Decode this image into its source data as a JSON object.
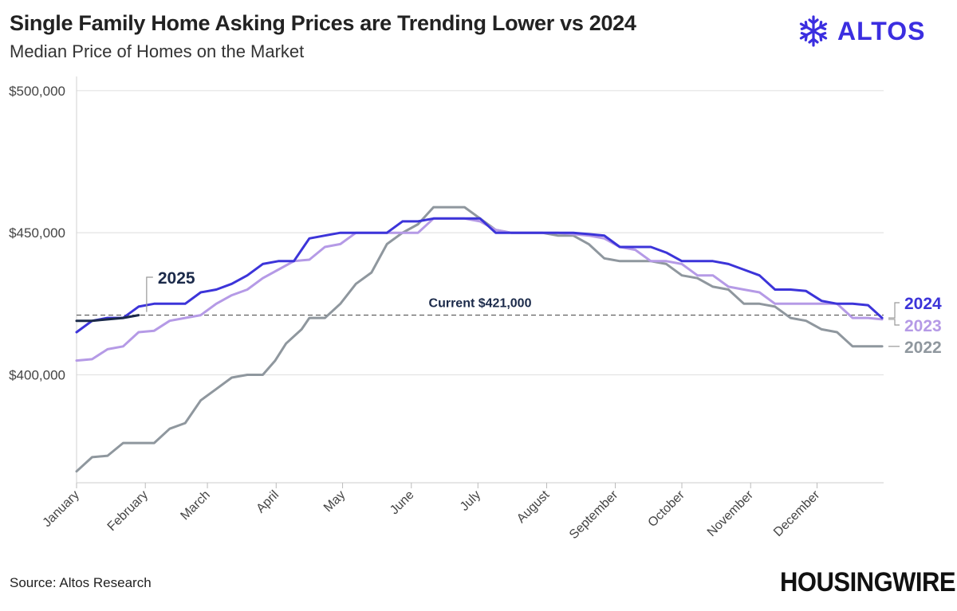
{
  "header": {
    "title": "Single Family Home Asking Prices are Trending Lower vs 2024",
    "subtitle": "Median Price of Homes on the Market"
  },
  "brand": {
    "name": "ALTOS",
    "icon": "snowflake-icon",
    "color": "#3b2ee0"
  },
  "footer": {
    "source": "Source: Altos Research",
    "publisher": "HOUSINGWIRE"
  },
  "annotation": {
    "label": "Current $421,000",
    "value": 421000
  },
  "chart_data": {
    "type": "line",
    "x_unit": "week of year",
    "x_ticks": [
      {
        "label": "January",
        "week": 1
      },
      {
        "label": "February",
        "week": 5.43
      },
      {
        "label": "March",
        "week": 9.43
      },
      {
        "label": "April",
        "week": 13.86
      },
      {
        "label": "May",
        "week": 18.14
      },
      {
        "label": "June",
        "week": 22.57
      },
      {
        "label": "July",
        "week": 26.86
      },
      {
        "label": "August",
        "week": 31.29
      },
      {
        "label": "September",
        "week": 35.71
      },
      {
        "label": "October",
        "week": 40.0
      },
      {
        "label": "November",
        "week": 44.43
      },
      {
        "label": "December",
        "week": 48.71
      }
    ],
    "xlim": [
      1,
      53
    ],
    "ylim": [
      362000,
      505000
    ],
    "y_ticks": [
      {
        "label": "$400,000",
        "value": 400000
      },
      {
        "label": "$450,000",
        "value": 450000
      },
      {
        "label": "$500,000",
        "value": 500000
      }
    ],
    "grid": "horizontal",
    "series": [
      {
        "name": "2022",
        "color": "#8f979e",
        "values": [
          [
            1,
            366000
          ],
          [
            2,
            371000
          ],
          [
            3,
            371500
          ],
          [
            4,
            376000
          ],
          [
            5,
            376000
          ],
          [
            6,
            376000
          ],
          [
            7,
            381000
          ],
          [
            8,
            383000
          ],
          [
            9,
            391000
          ],
          [
            10,
            395000
          ],
          [
            11,
            399000
          ],
          [
            12,
            400000
          ],
          [
            13,
            400000
          ],
          [
            13.8,
            405000
          ],
          [
            14.5,
            411000
          ],
          [
            15.5,
            416000
          ],
          [
            16,
            420000
          ],
          [
            17,
            420000
          ],
          [
            18,
            425000
          ],
          [
            19,
            432000
          ],
          [
            20,
            436000
          ],
          [
            21,
            446000
          ],
          [
            22,
            450000
          ],
          [
            23,
            453000
          ],
          [
            24,
            459000
          ],
          [
            25,
            459000
          ],
          [
            26,
            459000
          ],
          [
            27,
            455000
          ],
          [
            28,
            451000
          ],
          [
            29,
            450000
          ],
          [
            30,
            450000
          ],
          [
            31,
            450000
          ],
          [
            32,
            449000
          ],
          [
            33,
            449000
          ],
          [
            34,
            446000
          ],
          [
            35,
            441000
          ],
          [
            36,
            440000
          ],
          [
            37,
            440000
          ],
          [
            38,
            440000
          ],
          [
            39,
            439000
          ],
          [
            40,
            435000
          ],
          [
            41,
            434000
          ],
          [
            42,
            431000
          ],
          [
            43,
            430000
          ],
          [
            44,
            425000
          ],
          [
            45,
            425000
          ],
          [
            46,
            424000
          ],
          [
            47,
            420000
          ],
          [
            48,
            419000
          ],
          [
            49,
            416000
          ],
          [
            50,
            415000
          ],
          [
            51,
            410000
          ],
          [
            52,
            410000
          ],
          [
            52.9,
            410000
          ]
        ]
      },
      {
        "name": "2023",
        "color": "#b59ae6",
        "values": [
          [
            1,
            405000
          ],
          [
            2,
            405500
          ],
          [
            3,
            409000
          ],
          [
            4,
            410000
          ],
          [
            5,
            415000
          ],
          [
            6,
            415500
          ],
          [
            7,
            419000
          ],
          [
            8,
            420000
          ],
          [
            9,
            421000
          ],
          [
            10,
            425000
          ],
          [
            11,
            428000
          ],
          [
            12,
            430000
          ],
          [
            13,
            434000
          ],
          [
            14,
            437000
          ],
          [
            15,
            440000
          ],
          [
            16,
            440500
          ],
          [
            17,
            445000
          ],
          [
            18,
            446000
          ],
          [
            19,
            450000
          ],
          [
            20,
            450000
          ],
          [
            21,
            450000
          ],
          [
            22,
            450000
          ],
          [
            23,
            450000
          ],
          [
            24,
            455000
          ],
          [
            25,
            455000
          ],
          [
            26,
            455000
          ],
          [
            27,
            454000
          ],
          [
            28,
            451000
          ],
          [
            29,
            450000
          ],
          [
            30,
            450000
          ],
          [
            31,
            450000
          ],
          [
            32,
            450000
          ],
          [
            33,
            449500
          ],
          [
            34,
            449000
          ],
          [
            35,
            448000
          ],
          [
            36,
            445000
          ],
          [
            37,
            444000
          ],
          [
            38,
            440000
          ],
          [
            39,
            440000
          ],
          [
            40,
            439000
          ],
          [
            41,
            435000
          ],
          [
            42,
            435000
          ],
          [
            43,
            431000
          ],
          [
            44,
            430000
          ],
          [
            45,
            429000
          ],
          [
            46,
            425000
          ],
          [
            47,
            425000
          ],
          [
            48,
            425000
          ],
          [
            49,
            425000
          ],
          [
            50,
            425000
          ],
          [
            51,
            420000
          ],
          [
            52,
            420000
          ],
          [
            52.9,
            419500
          ]
        ]
      },
      {
        "name": "2024",
        "color": "#3c34d9",
        "values": [
          [
            1,
            415000
          ],
          [
            2,
            419000
          ],
          [
            3,
            420000
          ],
          [
            4,
            420000
          ],
          [
            5,
            424000
          ],
          [
            6,
            425000
          ],
          [
            7,
            425000
          ],
          [
            8,
            425000
          ],
          [
            9,
            429000
          ],
          [
            10,
            430000
          ],
          [
            11,
            432000
          ],
          [
            12,
            435000
          ],
          [
            13,
            439000
          ],
          [
            14,
            440000
          ],
          [
            15,
            440000
          ],
          [
            16,
            448000
          ],
          [
            17,
            449000
          ],
          [
            18,
            450000
          ],
          [
            19,
            450000
          ],
          [
            20,
            450000
          ],
          [
            21,
            450000
          ],
          [
            22,
            454000
          ],
          [
            23,
            454000
          ],
          [
            24,
            455000
          ],
          [
            25,
            455000
          ],
          [
            26,
            455000
          ],
          [
            27,
            455000
          ],
          [
            28,
            450000
          ],
          [
            29,
            450000
          ],
          [
            30,
            450000
          ],
          [
            31,
            450000
          ],
          [
            32,
            450000
          ],
          [
            33,
            450000
          ],
          [
            34,
            449500
          ],
          [
            35,
            449000
          ],
          [
            36,
            445000
          ],
          [
            37,
            445000
          ],
          [
            38,
            445000
          ],
          [
            39,
            443000
          ],
          [
            40,
            440000
          ],
          [
            41,
            440000
          ],
          [
            42,
            440000
          ],
          [
            43,
            439000
          ],
          [
            44,
            437000
          ],
          [
            45,
            435000
          ],
          [
            46,
            430000
          ],
          [
            47,
            430000
          ],
          [
            48,
            429500
          ],
          [
            49,
            426000
          ],
          [
            50,
            425000
          ],
          [
            51,
            425000
          ],
          [
            52,
            424500
          ],
          [
            52.9,
            420000
          ]
        ]
      },
      {
        "name": "2025",
        "color": "#1b2a4a",
        "values": [
          [
            1,
            419000
          ],
          [
            2,
            419000
          ],
          [
            3,
            419500
          ],
          [
            4,
            420000
          ],
          [
            5,
            421000
          ]
        ]
      }
    ],
    "labels": [
      {
        "series": "2025",
        "text": "2025"
      },
      {
        "series": "2024",
        "text": "2024"
      },
      {
        "series": "2023",
        "text": "2023"
      },
      {
        "series": "2022",
        "text": "2022"
      }
    ]
  }
}
